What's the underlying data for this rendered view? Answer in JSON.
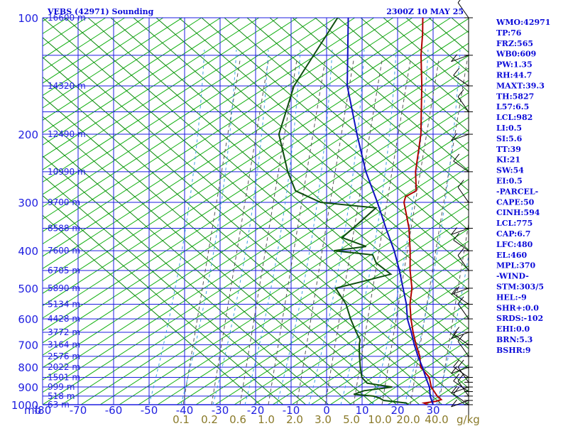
{
  "header": {
    "station_title": "VEBS (42971) Sounding",
    "valid_time": "2300Z 10 MAY 25"
  },
  "chart_data": {
    "type": "line",
    "x_unit_label": "mb",
    "xlim": [
      -80,
      40
    ],
    "ylim": [
      1000,
      100
    ],
    "y_scale": "log-pressure (skew-T)",
    "pressure_levels": [
      100,
      200,
      300,
      400,
      500,
      600,
      700,
      800,
      900,
      1000
    ],
    "temperature_ticks": [
      -80,
      -70,
      -60,
      -50,
      -40,
      -30,
      -20,
      -10,
      0,
      10,
      20,
      30
    ],
    "height_labels": [
      {
        "p": 100,
        "label": "16600 m"
      },
      {
        "p": 150,
        "label": "14320 m"
      },
      {
        "p": 200,
        "label": "12490 m"
      },
      {
        "p": 250,
        "label": "10990 m"
      },
      {
        "p": 300,
        "label": "9700 m"
      },
      {
        "p": 350,
        "label": "8588 m"
      },
      {
        "p": 400,
        "label": "7600 m"
      },
      {
        "p": 450,
        "label": "6705 m"
      },
      {
        "p": 500,
        "label": "5890 m"
      },
      {
        "p": 550,
        "label": "5134 m"
      },
      {
        "p": 600,
        "label": "4428 m"
      },
      {
        "p": 650,
        "label": "3772 m"
      },
      {
        "p": 700,
        "label": "3164 m"
      },
      {
        "p": 750,
        "label": "2576 m"
      },
      {
        "p": 800,
        "label": "2022 m"
      },
      {
        "p": 850,
        "label": "1501 m"
      },
      {
        "p": 900,
        "label": "999 m"
      },
      {
        "p": 950,
        "label": "518 m"
      },
      {
        "p": 1000,
        "label": "63 m"
      }
    ],
    "mixing_ratio_labels": [
      "0.1",
      "0.2",
      "0.6",
      "1.0",
      "2.0",
      "3.0",
      "5.0",
      "10.0",
      "20.0",
      "40.0"
    ],
    "mixing_ratio_values": [
      0.1,
      0.2,
      0.6,
      1.0,
      2.0,
      3.0,
      5.0,
      10.0,
      20.0,
      40.0
    ],
    "mixing_ratio_unit": "g/kg",
    "series": [
      {
        "role": "temperature",
        "color": "#b00000",
        "points": [
          {
            "p": 1000,
            "t": 28.5
          },
          {
            "p": 990,
            "t": 27
          },
          {
            "p": 980,
            "t": 30
          },
          {
            "p": 970,
            "t": 31
          },
          {
            "p": 950,
            "t": 29
          },
          {
            "p": 925,
            "t": 27
          },
          {
            "p": 900,
            "t": 25
          },
          {
            "p": 850,
            "t": 22
          },
          {
            "p": 800,
            "t": 17
          },
          {
            "p": 750,
            "t": 14
          },
          {
            "p": 700,
            "t": 10
          },
          {
            "p": 650,
            "t": 6
          },
          {
            "p": 600,
            "t": 2
          },
          {
            "p": 550,
            "t": -2
          },
          {
            "p": 500,
            "t": -5.5
          },
          {
            "p": 450,
            "t": -10.5
          },
          {
            "p": 400,
            "t": -15.5
          },
          {
            "p": 350,
            "t": -21.5
          },
          {
            "p": 300,
            "t": -29.5
          },
          {
            "p": 290,
            "t": -30.5
          },
          {
            "p": 280,
            "t": -29
          },
          {
            "p": 250,
            "t": -34
          },
          {
            "p": 200,
            "t": -42
          },
          {
            "p": 150,
            "t": -54
          },
          {
            "p": 125,
            "t": -62
          },
          {
            "p": 110,
            "t": -67
          },
          {
            "p": 100,
            "t": -71
          }
        ]
      },
      {
        "role": "dewpoint",
        "color": "#0e4f0e",
        "points": [
          {
            "p": 1000,
            "t": 23
          },
          {
            "p": 990,
            "t": 22
          },
          {
            "p": 975,
            "t": 15
          },
          {
            "p": 960,
            "t": 13
          },
          {
            "p": 950,
            "t": 11
          },
          {
            "p": 940,
            "t": 5
          },
          {
            "p": 920,
            "t": 7
          },
          {
            "p": 900,
            "t": 14
          },
          {
            "p": 880,
            "t": 6
          },
          {
            "p": 850,
            "t": 3
          },
          {
            "p": 800,
            "t": 0
          },
          {
            "p": 750,
            "t": -3
          },
          {
            "p": 700,
            "t": -6
          },
          {
            "p": 680,
            "t": -7
          },
          {
            "p": 650,
            "t": -10
          },
          {
            "p": 600,
            "t": -15
          },
          {
            "p": 550,
            "t": -20
          },
          {
            "p": 500,
            "t": -27
          },
          {
            "p": 480,
            "t": -21
          },
          {
            "p": 460,
            "t": -15
          },
          {
            "p": 430,
            "t": -22
          },
          {
            "p": 410,
            "t": -25
          },
          {
            "p": 400,
            "t": -37
          },
          {
            "p": 390,
            "t": -29
          },
          {
            "p": 370,
            "t": -38
          },
          {
            "p": 340,
            "t": -37
          },
          {
            "p": 310,
            "t": -36
          },
          {
            "p": 300,
            "t": -53
          },
          {
            "p": 280,
            "t": -63
          },
          {
            "p": 250,
            "t": -70
          },
          {
            "p": 200,
            "t": -82
          },
          {
            "p": 150,
            "t": -90
          },
          {
            "p": 100,
            "t": -95
          }
        ]
      },
      {
        "role": "parcel",
        "color": "#1010c0",
        "points": [
          {
            "p": 1000,
            "t": 30
          },
          {
            "p": 950,
            "t": 27
          },
          {
            "p": 900,
            "t": 24.5
          },
          {
            "p": 850,
            "t": 21
          },
          {
            "p": 800,
            "t": 17.5
          },
          {
            "p": 750,
            "t": 13.5
          },
          {
            "p": 700,
            "t": 9.5
          },
          {
            "p": 650,
            "t": 5.5
          },
          {
            "p": 600,
            "t": 1
          },
          {
            "p": 550,
            "t": -3
          },
          {
            "p": 500,
            "t": -8
          },
          {
            "p": 450,
            "t": -13.5
          },
          {
            "p": 400,
            "t": -20
          },
          {
            "p": 350,
            "t": -28
          },
          {
            "p": 300,
            "t": -37
          },
          {
            "p": 250,
            "t": -48
          },
          {
            "p": 200,
            "t": -60
          },
          {
            "p": 150,
            "t": -75
          },
          {
            "p": 100,
            "t": -92
          }
        ]
      }
    ],
    "wind_barbs_pressures": [
      1000,
      975,
      950,
      925,
      900,
      875,
      850,
      800,
      750,
      700,
      650,
      600,
      550,
      500,
      450,
      400,
      350,
      300,
      250,
      200,
      175,
      150,
      125,
      100
    ]
  },
  "colors": {
    "grid_blue": "#1e1ee0",
    "dry_adiabat": "#0a8a0a",
    "isotherm_diag": "#12b012",
    "mixing_ratio": "#555555",
    "moist_adiabat": "#3aa0e0",
    "wind_barb": "#000000"
  },
  "indices": [
    "WMO:42971",
    "TP:76",
    "FRZ:565",
    "WB0:609",
    "PW:1.35",
    "RH:44.7",
    "MAXT:39.3",
    "TH:5827",
    "L57:6.5",
    "LCL:982",
    "LI:0.5",
    "SI:5.6",
    "TT:39",
    "KI:21",
    "SW:54",
    "EI:0.5",
    "-PARCEL-",
    "CAPE:50",
    "CINH:594",
    "LCL:775",
    "CAP:6.7",
    "LFC:480",
    "EL:460",
    "MPL:370",
    "-WIND-",
    "STM:303/5",
    "HEL:-9",
    "SHR+:0.0",
    "SRDS:-102",
    "EHI:0.0",
    "BRN:5.3",
    "BSHR:9"
  ]
}
